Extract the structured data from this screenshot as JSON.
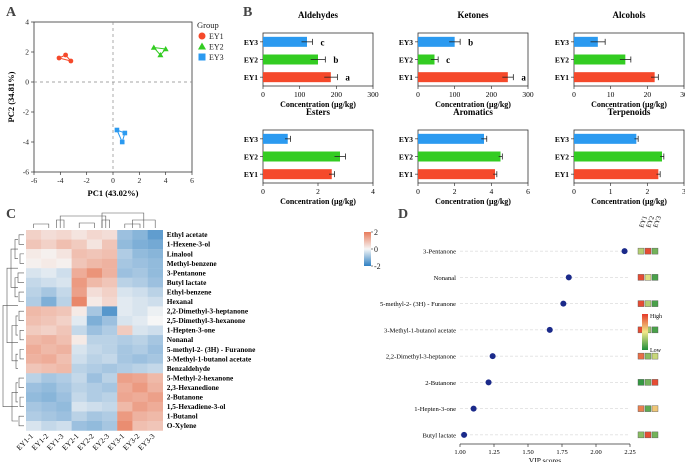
{
  "colors": {
    "ey1": "#f5492b",
    "ey2": "#33cc22",
    "ey3": "#2b9af0",
    "vipdot": "#1b2a8a",
    "hmHigh": "#e87b5a",
    "hmLow": "#2e7fc2",
    "hmMid": "#f4f4f4"
  },
  "panel_letters": {
    "a": "A",
    "b": "B",
    "c": "C",
    "d": "D"
  },
  "chart_data": [
    {
      "type": "scatter",
      "id": "pca",
      "xlabel": "PC1 (43.02%)",
      "ylabel": "PC2 (34.81%)",
      "xlim": [
        -6,
        6
      ],
      "ylim": [
        -6,
        4
      ],
      "xticks": [
        -6,
        -4,
        -2,
        0,
        2,
        4,
        6
      ],
      "yticks": [
        -6,
        -4,
        -2,
        0,
        2,
        4
      ],
      "legend_title": "Group",
      "groups": [
        {
          "name": "EY1",
          "shape": "circle",
          "points": [
            [
              -4.1,
              1.6
            ],
            [
              -3.6,
              1.8
            ],
            [
              -3.2,
              1.4
            ]
          ]
        },
        {
          "name": "EY2",
          "shape": "triangle",
          "points": [
            [
              3.1,
              2.3
            ],
            [
              3.6,
              1.8
            ],
            [
              4.0,
              2.2
            ]
          ]
        },
        {
          "name": "EY3",
          "shape": "square",
          "points": [
            [
              0.3,
              -3.2
            ],
            [
              0.7,
              -4.0
            ],
            [
              0.9,
              -3.4
            ]
          ]
        }
      ]
    },
    {
      "type": "bar",
      "orientation": "horizontal",
      "id": "bars",
      "categories": [
        "EY3",
        "EY2",
        "EY1"
      ],
      "xlabel": "Concentration (μg/kg)",
      "panels": [
        {
          "title": "Aldehydes",
          "values": [
            120,
            150,
            185
          ],
          "errors": [
            15,
            20,
            18
          ],
          "letters": [
            "c",
            "b",
            "a"
          ],
          "xlim": [
            0,
            300
          ],
          "xticks": [
            0,
            100,
            200,
            300
          ]
        },
        {
          "title": "Ketones",
          "values": [
            100,
            45,
            245
          ],
          "errors": [
            15,
            10,
            15
          ],
          "letters": [
            "b",
            "c",
            "a"
          ],
          "xlim": [
            0,
            300
          ],
          "xticks": [
            0,
            100,
            200,
            300
          ]
        },
        {
          "title": "Alcohols",
          "values": [
            6.5,
            14,
            22
          ],
          "errors": [
            2,
            1.5,
            1
          ],
          "letters": [
            "",
            "",
            ""
          ],
          "xlim": [
            0,
            30
          ],
          "xticks": [
            0,
            10,
            20,
            30
          ]
        },
        {
          "title": "Esters",
          "values": [
            0.9,
            2.8,
            2.5
          ],
          "errors": [
            0.1,
            0.2,
            0.1
          ],
          "letters": [
            "",
            "",
            ""
          ],
          "xlim": [
            0,
            4
          ],
          "xticks": [
            0,
            2,
            4
          ]
        },
        {
          "title": "Aromatics",
          "values": [
            3.6,
            4.5,
            4.2
          ],
          "errors": [
            0.15,
            0.1,
            0.1
          ],
          "letters": [
            "",
            "",
            ""
          ],
          "xlim": [
            0,
            6
          ],
          "xticks": [
            0,
            2,
            4,
            6
          ]
        },
        {
          "title": "Terpenoids",
          "values": [
            1.7,
            2.4,
            2.3
          ],
          "errors": [
            0.05,
            0.05,
            0.05
          ],
          "letters": [
            "",
            "",
            ""
          ],
          "xlim": [
            0,
            3
          ],
          "xticks": [
            0,
            1,
            2,
            3
          ]
        }
      ]
    },
    {
      "type": "heatmap",
      "id": "heatmap",
      "columns": [
        "EY1-1",
        "EY1-2",
        "EY1-3",
        "EY2-1",
        "EY2-2",
        "EY2-3",
        "EY3-1",
        "EY3-2",
        "EY3-3"
      ],
      "rows": [
        "Ethyl acetate",
        "1-Hexene-3-ol",
        "Linalool",
        "Methyl-benzene",
        "3-Pentanone",
        "Butyl lactate",
        "Ethyl-benzene",
        "Hexanal",
        "2,2-Dimethyl-3-heptanone",
        "2,5-Dimethyl-3-hexanone",
        "1-Hepten-3-one",
        "Nonanal",
        "5-methyl-2- (3H) - Furanone",
        "3-Methyl-1-butanol acetate",
        "Benzaldehyde",
        "5-Methyl-2-hexanone",
        "2,3-Hexanedione",
        "2-Butanone",
        "1,5-Hexadiene-3-ol",
        "1-Butanol",
        "O-Xylene"
      ],
      "values": [
        [
          0.6,
          0.4,
          0.5,
          0.3,
          0.5,
          0.4,
          -0.9,
          -1.1,
          -1.5
        ],
        [
          0.8,
          0.6,
          0.9,
          0.7,
          0.3,
          0.8,
          -1.0,
          -1.2,
          -1.3
        ],
        [
          0.2,
          0.1,
          0.3,
          0.9,
          0.8,
          0.9,
          -0.7,
          -1.0,
          -1.1
        ],
        [
          0.1,
          0.2,
          0.1,
          0.8,
          1.0,
          1.1,
          -0.8,
          -0.9,
          -1.0
        ],
        [
          -0.3,
          -0.2,
          -0.4,
          1.2,
          1.6,
          1.1,
          -0.9,
          -0.8,
          -1.0
        ],
        [
          -0.5,
          -0.4,
          -0.3,
          1.5,
          1.0,
          0.8,
          -0.6,
          -0.7,
          -0.9
        ],
        [
          -0.6,
          -0.8,
          -0.5,
          1.4,
          0.4,
          0.6,
          -0.3,
          -0.4,
          -0.6
        ],
        [
          -0.7,
          -1.2,
          -0.6,
          1.8,
          0.2,
          0.5,
          -0.2,
          -0.3,
          -0.4
        ],
        [
          1.0,
          0.9,
          0.8,
          0.2,
          -0.8,
          -1.6,
          -0.2,
          -0.3,
          -0.1
        ],
        [
          0.9,
          0.8,
          0.6,
          -0.2,
          -1.2,
          -0.9,
          -0.3,
          -0.2,
          0.0
        ],
        [
          0.7,
          0.6,
          0.8,
          -0.5,
          -0.9,
          -0.7,
          0.7,
          -0.3,
          -0.4
        ],
        [
          1.0,
          1.1,
          0.9,
          0.2,
          -0.6,
          -0.6,
          -0.7,
          -0.6,
          -0.8
        ],
        [
          1.2,
          1.0,
          1.1,
          -0.3,
          -0.5,
          -0.6,
          -0.8,
          -0.7,
          -0.9
        ],
        [
          1.1,
          1.2,
          0.9,
          -0.4,
          -0.6,
          -0.5,
          -0.8,
          -0.9,
          -0.8
        ],
        [
          0.8,
          0.9,
          1.0,
          -0.6,
          -0.7,
          -0.8,
          -0.7,
          -0.6,
          -0.5
        ],
        [
          -0.6,
          -0.8,
          -0.7,
          -0.5,
          -0.9,
          -0.6,
          1.4,
          1.3,
          1.0
        ],
        [
          -0.9,
          -1.0,
          -0.8,
          -0.6,
          -0.7,
          -0.8,
          1.2,
          1.5,
          1.1
        ],
        [
          -1.0,
          -1.1,
          -0.9,
          -0.5,
          -0.7,
          -0.6,
          1.3,
          1.2,
          1.4
        ],
        [
          -0.8,
          -0.9,
          -1.0,
          -0.3,
          -0.4,
          -0.5,
          1.0,
          1.4,
          1.2
        ],
        [
          -0.7,
          -0.8,
          -0.9,
          -0.6,
          -0.8,
          -0.7,
          1.5,
          1.1,
          1.0
        ],
        [
          -0.3,
          -0.5,
          -0.4,
          -0.9,
          -1.0,
          -0.8,
          1.7,
          0.9,
          0.8
        ]
      ],
      "legend_ticks": [
        2,
        0,
        -2
      ],
      "range": [
        -2,
        2
      ]
    },
    {
      "type": "scatter",
      "id": "vip",
      "xlabel": "VIP scores",
      "xlim": [
        1.0,
        2.25
      ],
      "xticks": [
        "1.00",
        "1.25",
        "1.50",
        "1.75",
        "2.00",
        "2.25"
      ],
      "compounds": [
        "3-Pentanone",
        "Nonanal",
        "5-methyl-2- (3H) - Furanone",
        "3-Methyl-1-butanol acetate",
        "2,2-Dimethyl-3-heptanone",
        "2-Butanone",
        "1-Hepten-3-one",
        "Butyl lactate"
      ],
      "scores": [
        2.21,
        1.8,
        1.76,
        1.66,
        1.24,
        1.21,
        1.1,
        1.03
      ],
      "group_labels": [
        "EY1",
        "EY2",
        "EY3"
      ],
      "levels": [
        [
          -0.3,
          0.9,
          -0.6
        ],
        [
          0.9,
          -0.1,
          -0.8
        ],
        [
          0.9,
          -0.3,
          -0.8
        ],
        [
          0.9,
          -0.4,
          -0.8
        ],
        [
          0.7,
          -0.5,
          -0.2
        ],
        [
          -0.9,
          -0.6,
          0.9
        ],
        [
          0.6,
          -0.7,
          0.2
        ],
        [
          -0.5,
          0.9,
          -0.6
        ]
      ],
      "legend_high": "High",
      "legend_low": "Low"
    }
  ]
}
